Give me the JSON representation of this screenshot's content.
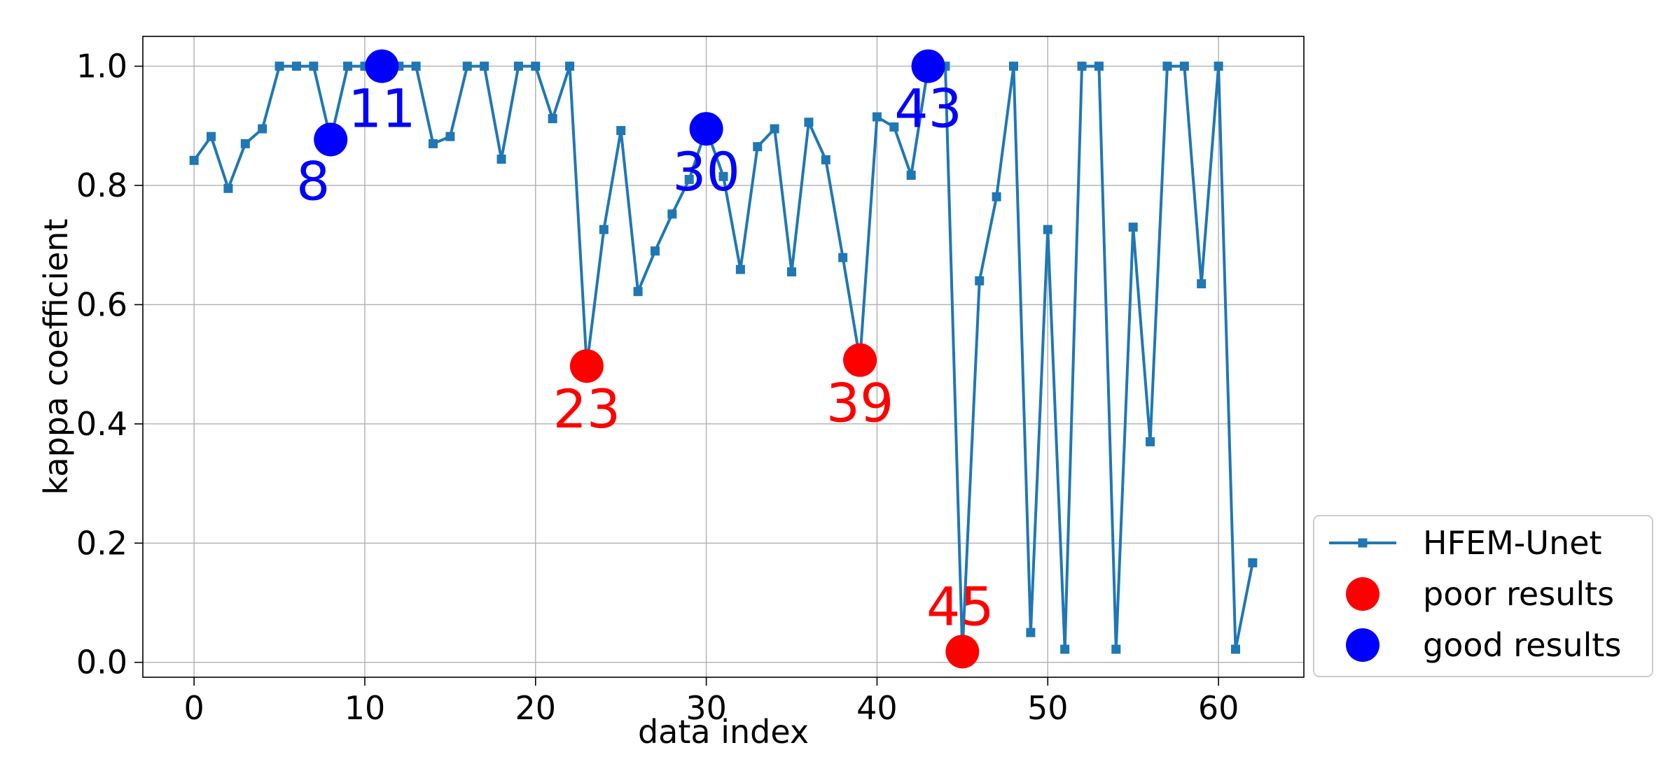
{
  "chart_data": {
    "type": "line",
    "title": "",
    "xlabel": "data index",
    "ylabel": "kappa coefficient",
    "xlim": [
      -3,
      65
    ],
    "ylim": [
      -0.025,
      1.05
    ],
    "xticks": [
      0,
      10,
      20,
      30,
      40,
      50,
      60
    ],
    "xtick_labels": [
      "0",
      "10",
      "20",
      "30",
      "40",
      "50",
      "60"
    ],
    "yticks": [
      0.0,
      0.2,
      0.4,
      0.6,
      0.8,
      1.0
    ],
    "ytick_labels": [
      "0.0",
      "0.2",
      "0.4",
      "0.6",
      "0.8",
      "1.0"
    ],
    "grid": true,
    "legend_position": "outside-right-bottom",
    "series": [
      {
        "name": "HFEM-Unet",
        "color": "#1f77b4",
        "marker": "square",
        "x": [
          0,
          1,
          2,
          3,
          4,
          5,
          6,
          7,
          8,
          9,
          10,
          11,
          12,
          13,
          14,
          15,
          16,
          17,
          18,
          19,
          20,
          21,
          22,
          23,
          24,
          25,
          26,
          27,
          28,
          29,
          30,
          31,
          32,
          33,
          34,
          35,
          36,
          37,
          38,
          39,
          40,
          41,
          42,
          43,
          44,
          45,
          46,
          47,
          48,
          49,
          50,
          51,
          52,
          53,
          54,
          55,
          56,
          57,
          58,
          59,
          60,
          61,
          62
        ],
        "y": [
          0.842,
          0.882,
          0.795,
          0.87,
          0.895,
          1.0,
          1.0,
          1.0,
          0.877,
          1.0,
          1.0,
          1.0,
          1.0,
          1.0,
          0.87,
          0.882,
          1.0,
          1.0,
          0.844,
          1.0,
          1.0,
          0.912,
          1.0,
          0.497,
          0.726,
          0.892,
          0.622,
          0.69,
          0.752,
          0.81,
          0.895,
          0.815,
          0.659,
          0.865,
          0.895,
          0.655,
          0.906,
          0.843,
          0.679,
          0.507,
          0.915,
          0.898,
          0.817,
          1.0,
          1.0,
          0.018,
          0.64,
          0.781,
          1.0,
          0.05,
          0.726,
          0.022,
          1.0,
          1.0,
          0.022,
          0.73,
          0.37,
          1.0,
          1.0,
          0.635,
          1.0,
          0.022,
          0.167
        ]
      },
      {
        "name": "poor results",
        "color": "#ff0000",
        "marker": "circle",
        "x": [
          23,
          39,
          45
        ],
        "y": [
          0.497,
          0.507,
          0.018
        ],
        "labels": [
          "23",
          "39",
          "45"
        ]
      },
      {
        "name": "good results",
        "color": "#0000ff",
        "marker": "circle",
        "x": [
          8,
          11,
          30,
          43
        ],
        "y": [
          0.877,
          1.0,
          0.895,
          1.0
        ],
        "labels": [
          "8",
          "11",
          "30",
          "43"
        ]
      }
    ]
  }
}
